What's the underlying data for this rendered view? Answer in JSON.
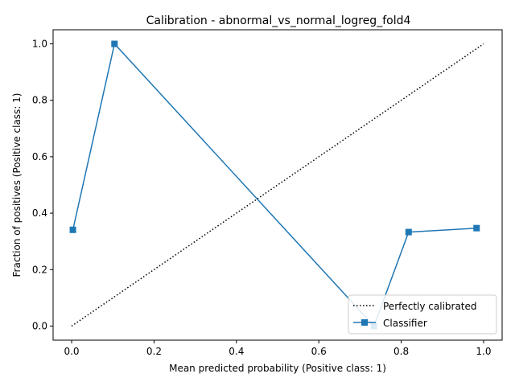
{
  "chart_data": {
    "type": "line",
    "title": "Calibration - abnormal_vs_normal_logreg_fold4",
    "xlabel": "Mean predicted probability (Positive class: 1)",
    "ylabel": "Fraction of positives (Positive class: 1)",
    "xlim": [
      -0.045,
      1.045
    ],
    "ylim": [
      -0.05,
      1.05
    ],
    "xticks": [
      "0.0",
      "0.2",
      "0.4",
      "0.6",
      "0.8",
      "1.0"
    ],
    "yticks": [
      "0.0",
      "0.2",
      "0.4",
      "0.6",
      "0.8",
      "1.0"
    ],
    "grid": false,
    "legend_placement": "lower-right",
    "series": [
      {
        "name": "Perfectly calibrated",
        "style": "dotted",
        "color": "#000000",
        "x": [
          0.0,
          1.0
        ],
        "y": [
          0.0,
          1.0
        ]
      },
      {
        "name": "Classifier",
        "style": "solid",
        "marker": "square",
        "color": "#1f77b4",
        "x": [
          0.003,
          0.104,
          0.734,
          0.818,
          0.983
        ],
        "y": [
          0.341,
          1.0,
          0.0,
          0.333,
          0.347
        ]
      }
    ]
  }
}
